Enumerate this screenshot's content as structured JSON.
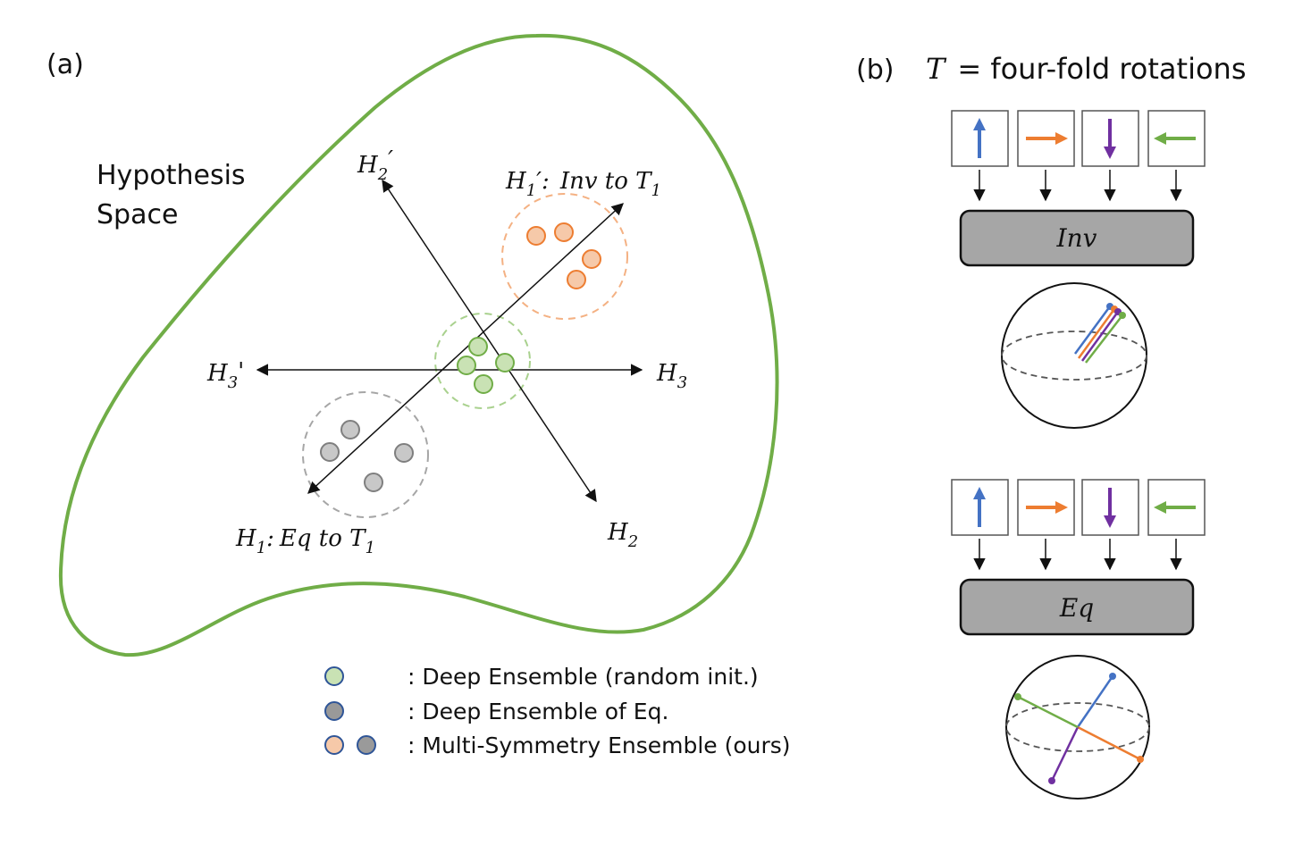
{
  "panel_a": {
    "label": "(a)",
    "space_title_line1": "Hypothesis",
    "space_title_line2": "Space",
    "axes": {
      "h2p": {
        "base": "H",
        "sub": "2",
        "suffix": "′"
      },
      "h1p": {
        "base": "H",
        "sub": "1",
        "suffix": "′:",
        "rest": "Inv to T",
        "rest_sub": "1"
      },
      "h3p": {
        "base": "H",
        "sub": "3",
        "suffix": "'"
      },
      "h3": {
        "base": "H",
        "sub": "3"
      },
      "h1": {
        "base": "H",
        "sub": "1",
        "suffix": ":",
        "rest": "Eq to T",
        "rest_sub": "1"
      },
      "h2": {
        "base": "H",
        "sub": "2"
      }
    },
    "legend": [
      {
        "text": ": Deep Ensemble (random init.)",
        "colors": [
          "#c9e2b4"
        ]
      },
      {
        "text": ": Deep Ensemble of Eq.",
        "colors": [
          "#999999"
        ]
      },
      {
        "text": ": Multi-Symmetry Ensemble (ours)",
        "colors": [
          "#f6c9a9",
          "#9a9a9a"
        ]
      }
    ],
    "colors": {
      "outline": "#70ad47",
      "green_fill": "#c9e2b4",
      "green_stroke": "#70ad47",
      "orange_fill": "#f6c9a9",
      "orange_stroke": "#ed7d31",
      "gray_fill": "#c8c8c8",
      "gray_stroke": "#7f7f7f",
      "legend_stroke": "#2f5597"
    }
  },
  "panel_b": {
    "label": "(b)",
    "title_symbol": "T",
    "title_rest": "= four-fold rotations",
    "inv_label": "Inv",
    "eq_label": "Eq",
    "arrow_colors": {
      "up": "#4472c4",
      "right": "#ed7d31",
      "down": "#7030a0",
      "left": "#70ad47"
    }
  }
}
